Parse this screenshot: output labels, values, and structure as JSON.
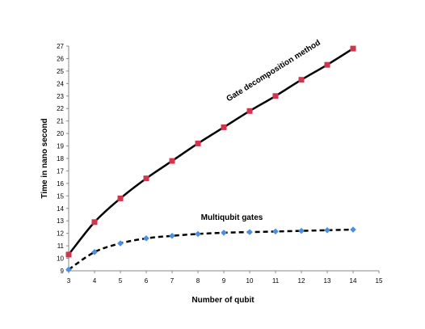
{
  "chart_data": {
    "type": "line",
    "title": "",
    "xlabel": "Number of qubit",
    "ylabel": "Time in nano second",
    "xlim": [
      3,
      15
    ],
    "ylim": [
      9,
      27
    ],
    "xticks": [
      3,
      4,
      5,
      6,
      7,
      8,
      9,
      10,
      11,
      12,
      13,
      14,
      15
    ],
    "yticks": [
      9,
      10,
      11,
      12,
      13,
      14,
      15,
      16,
      17,
      18,
      19,
      20,
      21,
      22,
      23,
      24,
      25,
      26,
      27
    ],
    "grid": false,
    "legend": "none",
    "series": [
      {
        "name": "Gate decomposition method",
        "x": [
          3,
          4,
          5,
          6,
          7,
          8,
          9,
          10,
          11,
          12,
          13,
          14
        ],
        "values": [
          10.3,
          12.9,
          14.8,
          16.4,
          17.8,
          19.2,
          20.5,
          21.8,
          23.0,
          24.3,
          25.5,
          26.8
        ],
        "line_color": "#000000",
        "line_style": "solid",
        "marker": "square",
        "marker_color": "#d1354e"
      },
      {
        "name": "Multiqubit gates",
        "x": [
          3,
          4,
          5,
          6,
          7,
          8,
          9,
          10,
          11,
          12,
          13,
          14
        ],
        "values": [
          9.1,
          10.5,
          11.2,
          11.6,
          11.8,
          11.95,
          12.05,
          12.1,
          12.15,
          12.2,
          12.25,
          12.3
        ],
        "line_color": "#000000",
        "line_style": "dashed",
        "marker": "diamond",
        "marker_color": "#4a8fe0"
      }
    ]
  }
}
